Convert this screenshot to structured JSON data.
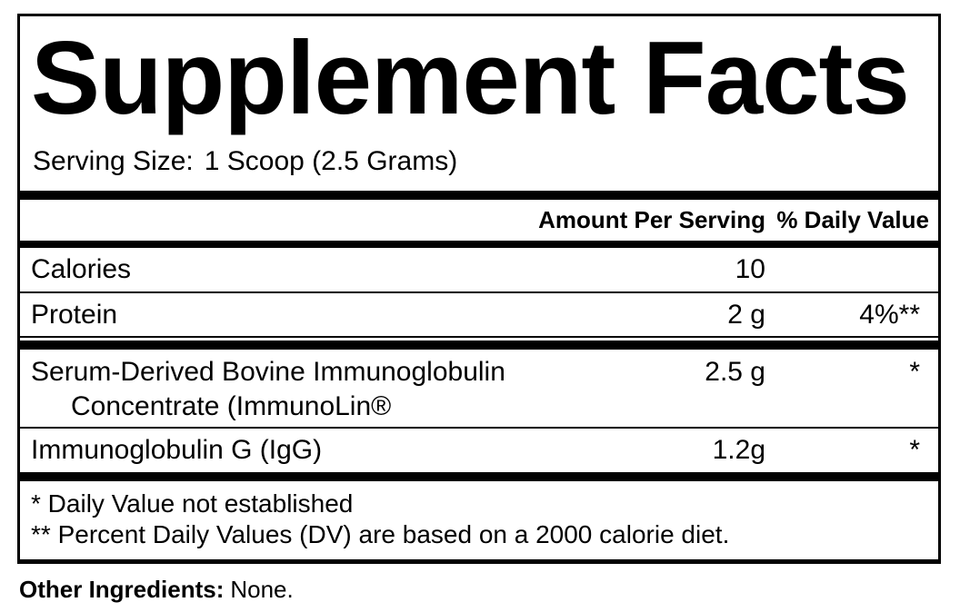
{
  "panel": {
    "title": "Supplement Facts",
    "serving": {
      "label": "Serving Size:",
      "value": "1 Scoop (2.5 Grams)"
    },
    "columns": {
      "amount": "Amount Per Serving",
      "daily_value": "% Daily Value"
    },
    "rows": [
      {
        "name": "Calories",
        "amount": "10",
        "dv": ""
      },
      {
        "name": "Protein",
        "amount": "2 g",
        "dv": "4%**"
      },
      {
        "name": "Serum-Derived Bovine Immunoglobulin",
        "name2": "Concentrate (ImmunoLin®",
        "amount": "2.5 g",
        "dv": "*"
      },
      {
        "name": "Immunoglobulin G (IgG)",
        "amount": "1.2g",
        "dv": "*"
      }
    ],
    "footnotes": [
      "* Daily Value not established",
      "** Percent Daily Values (DV) are based on a 2000 calorie diet."
    ],
    "other_ingredients": {
      "label": "Other Ingredients:",
      "value": "None."
    }
  },
  "colors": {
    "text": "#000000",
    "background": "#ffffff",
    "rule": "#000000"
  }
}
